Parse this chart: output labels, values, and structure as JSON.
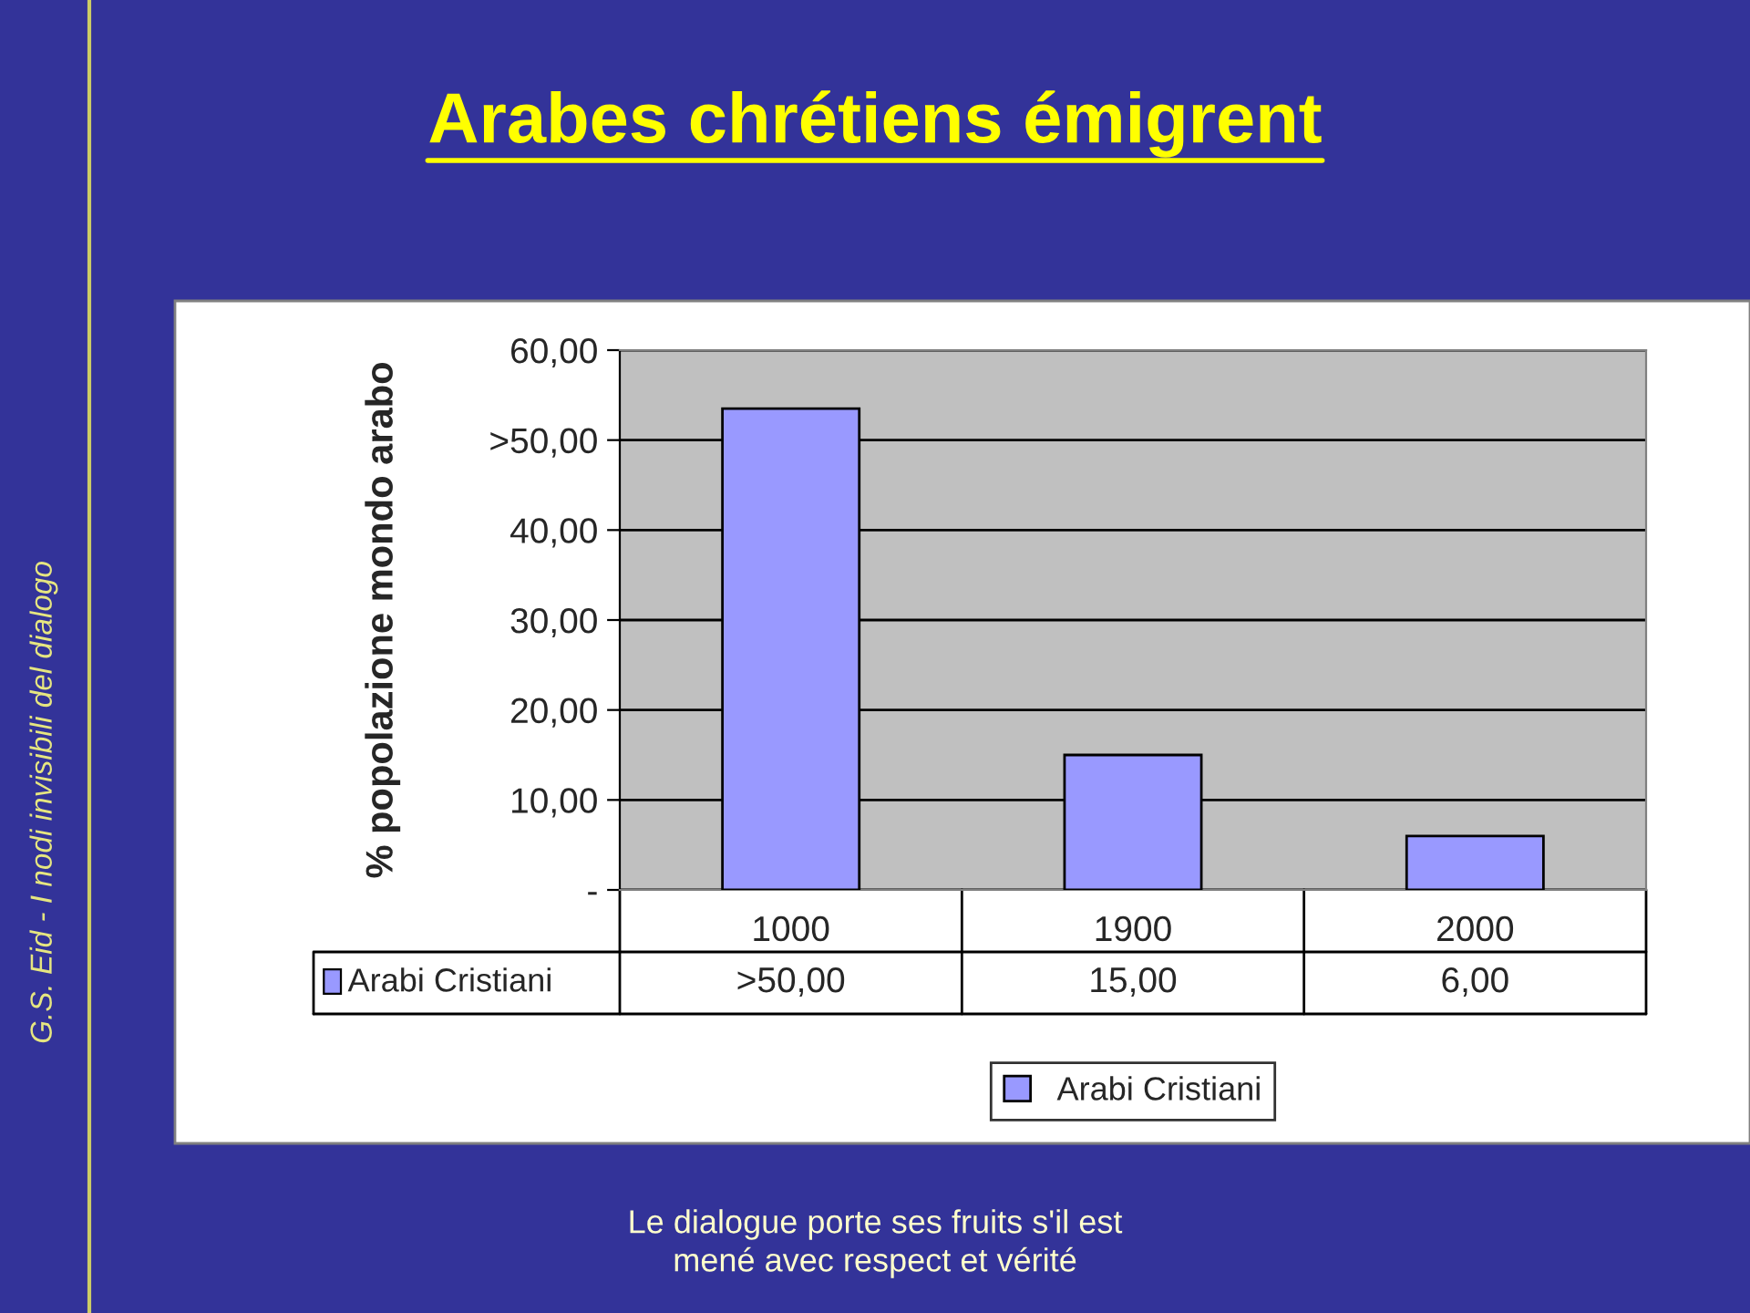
{
  "chart_data": {
    "type": "bar",
    "title": "Arabes chrétiens émigrent",
    "categories": [
      "1000",
      "1900",
      "2000"
    ],
    "series": [
      {
        "name": "Arabi Cristiani",
        "color": "#9999ff",
        "values": [
          53.5,
          15,
          6
        ],
        "value_labels": [
          ">50,00",
          "15,00",
          "6,00"
        ]
      }
    ],
    "ylabel": "% popolazione mondo arabo",
    "ylim": [
      0,
      60
    ],
    "yticks": [
      {
        "value": 0,
        "label": "-"
      },
      {
        "value": 10,
        "label": "10,00"
      },
      {
        "value": 20,
        "label": "20,00"
      },
      {
        "value": 30,
        "label": "30,00"
      },
      {
        "value": 40,
        "label": "40,00"
      },
      {
        "value": 50,
        "label": ">50,00"
      },
      {
        "value": 60,
        "label": "60,00"
      }
    ],
    "grid": "y",
    "legend": "bottom",
    "annotations": [
      "G.S. Eid - I nodi invisibili del dialogo",
      "Le dialogue porte ses fruits s'il est\nmené avec respect et vérité"
    ]
  }
}
